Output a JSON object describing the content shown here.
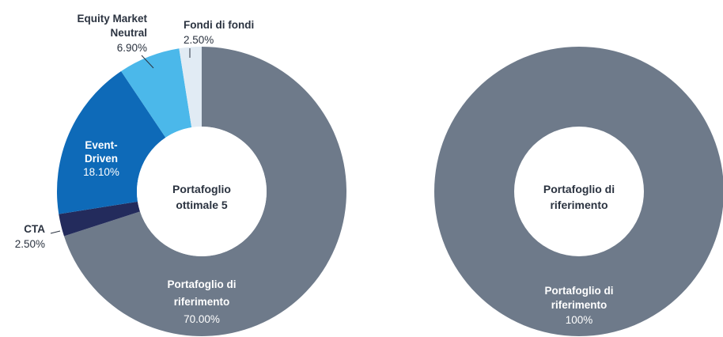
{
  "chart_data": [
    {
      "type": "pie",
      "center_label": [
        "Portafoglio",
        "ottimale 5"
      ],
      "slices": [
        {
          "name": [
            "Portafoglio di",
            "riferimento"
          ],
          "value": 70.0,
          "value_label": "70.00%",
          "color": "#6e7a8a"
        },
        {
          "name": [
            "CTA"
          ],
          "value": 2.5,
          "value_label": "2.50%",
          "color": "#232b5c"
        },
        {
          "name": [
            "Event-",
            "Driven"
          ],
          "value": 18.1,
          "value_label": "18.10%",
          "color": "#0e6ab8"
        },
        {
          "name": [
            "Equity Market",
            "Neutral"
          ],
          "value": 6.9,
          "value_label": "6.90%",
          "color": "#4bb8ea"
        },
        {
          "name": [
            "Fondi di fondi"
          ],
          "value": 2.5,
          "value_label": "2.50%",
          "color": "#e1ebf4"
        }
      ]
    },
    {
      "type": "pie",
      "center_label": [
        "Portafoglio di",
        "riferimento"
      ],
      "slices": [
        {
          "name": [
            "Portafoglio di",
            "riferimento"
          ],
          "value": 100,
          "value_label": "100%",
          "color": "#6e7a8a"
        }
      ]
    }
  ]
}
